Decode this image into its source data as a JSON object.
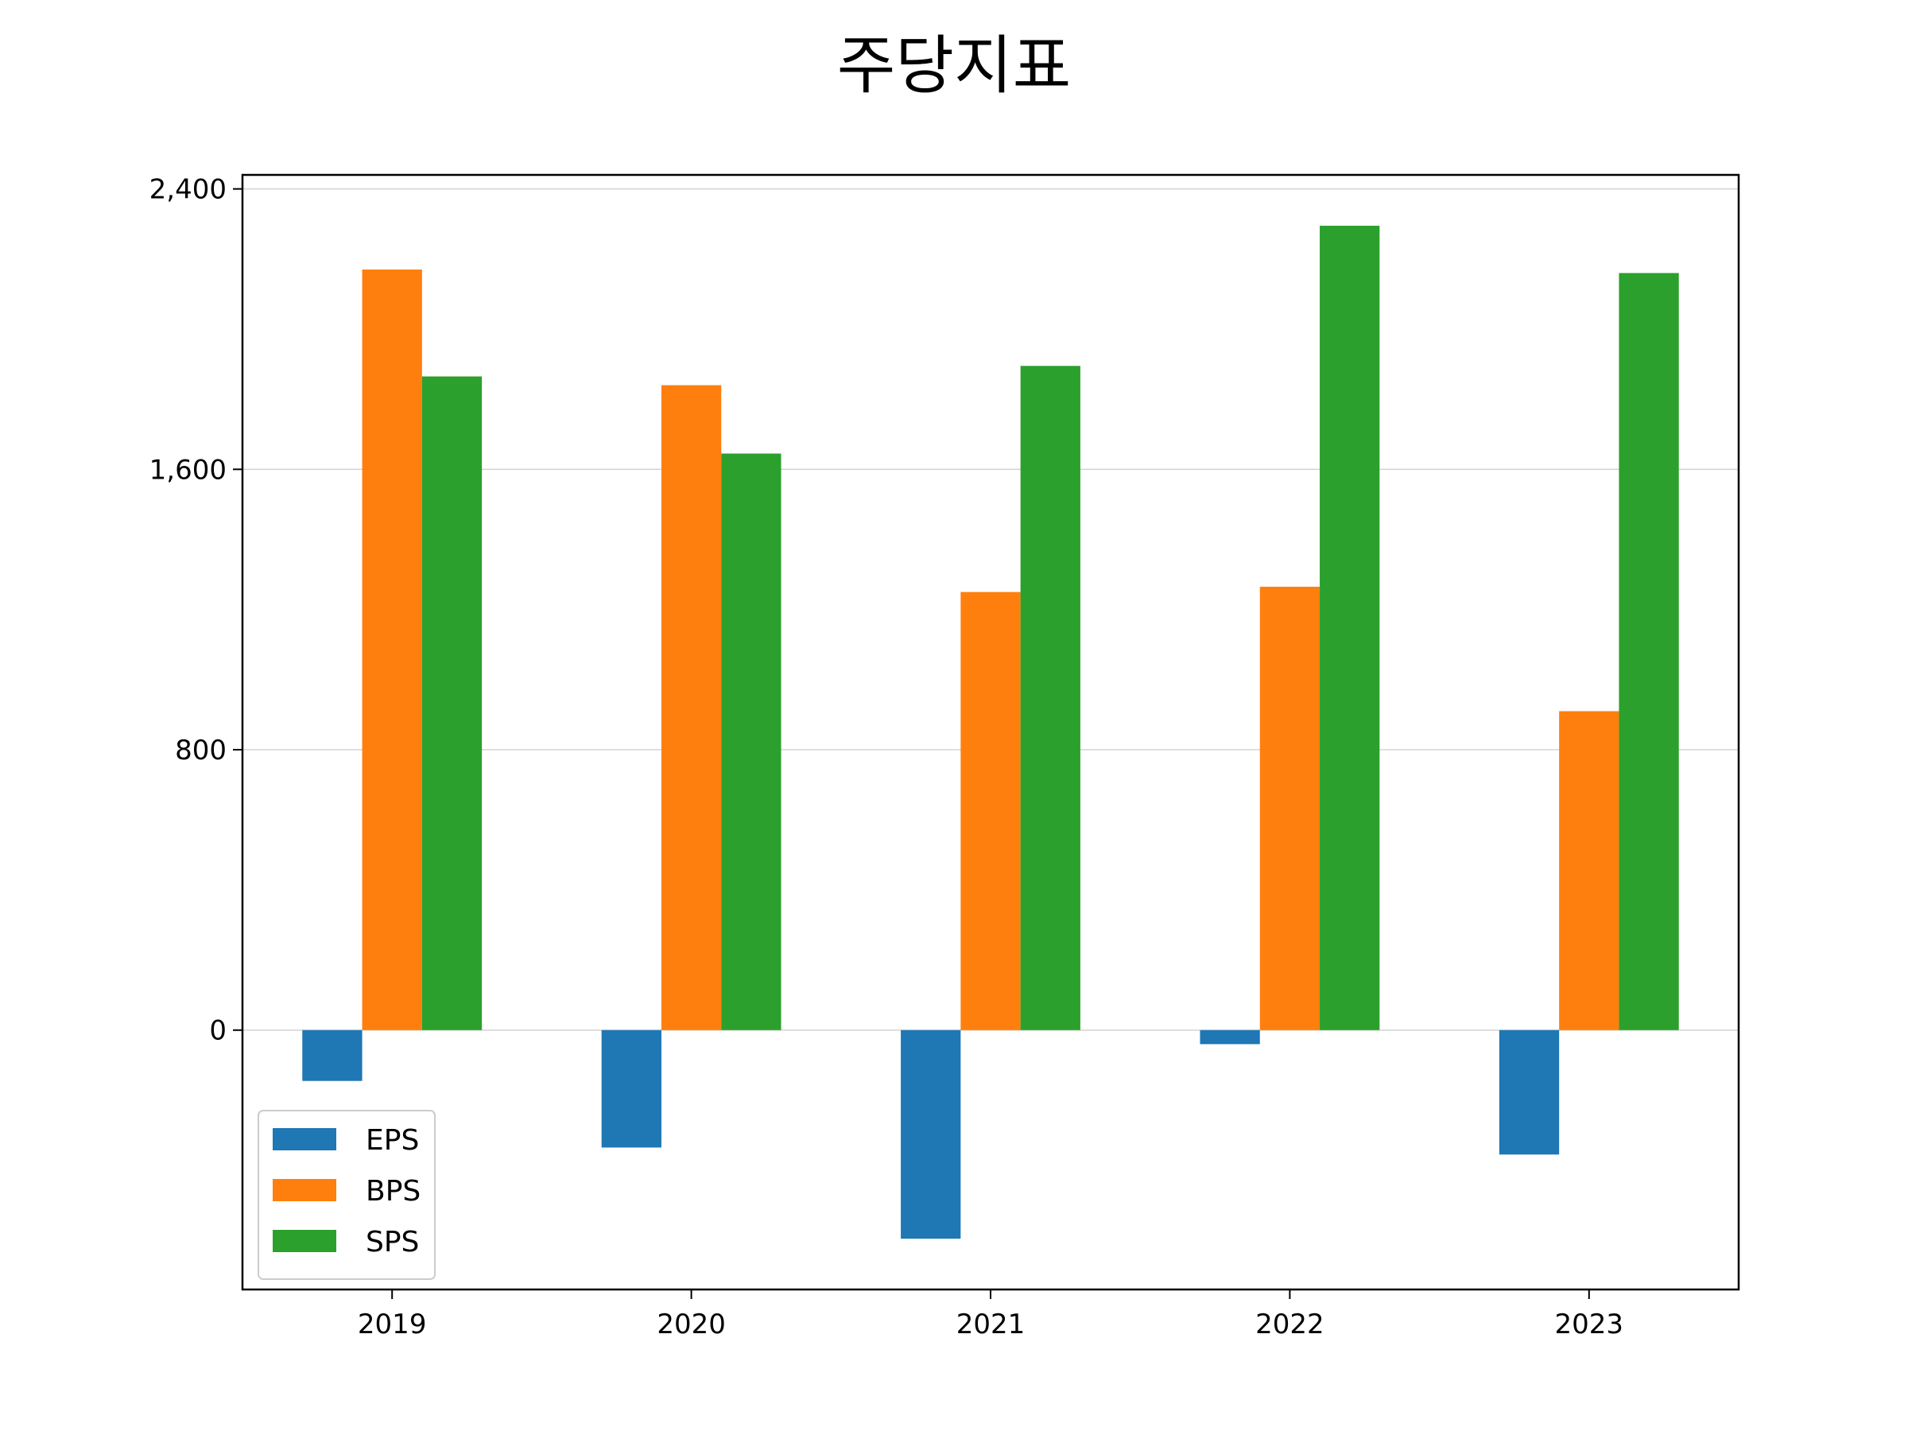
{
  "chart_data": {
    "type": "bar",
    "title": "주당지표",
    "xlabel": "",
    "ylabel": "",
    "categories": [
      "2019",
      "2020",
      "2021",
      "2022",
      "2023"
    ],
    "series": [
      {
        "name": "EPS",
        "color": "#1f77b4",
        "values": [
          -145,
          -335,
          -595,
          -40,
          -355
        ]
      },
      {
        "name": "BPS",
        "color": "#ff7f0e",
        "values": [
          2170,
          1840,
          1250,
          1265,
          910
        ]
      },
      {
        "name": "SPS",
        "color": "#2ca02c",
        "values": [
          1865,
          1645,
          1895,
          2295,
          2160
        ]
      }
    ],
    "ylim": [
      -740,
      2440
    ],
    "yticks": [
      0,
      800,
      1600,
      2400
    ],
    "ytick_labels": [
      "0",
      "800",
      "1,600",
      "2,400"
    ],
    "grid": "horizontal",
    "legend_position": "lower-left"
  }
}
